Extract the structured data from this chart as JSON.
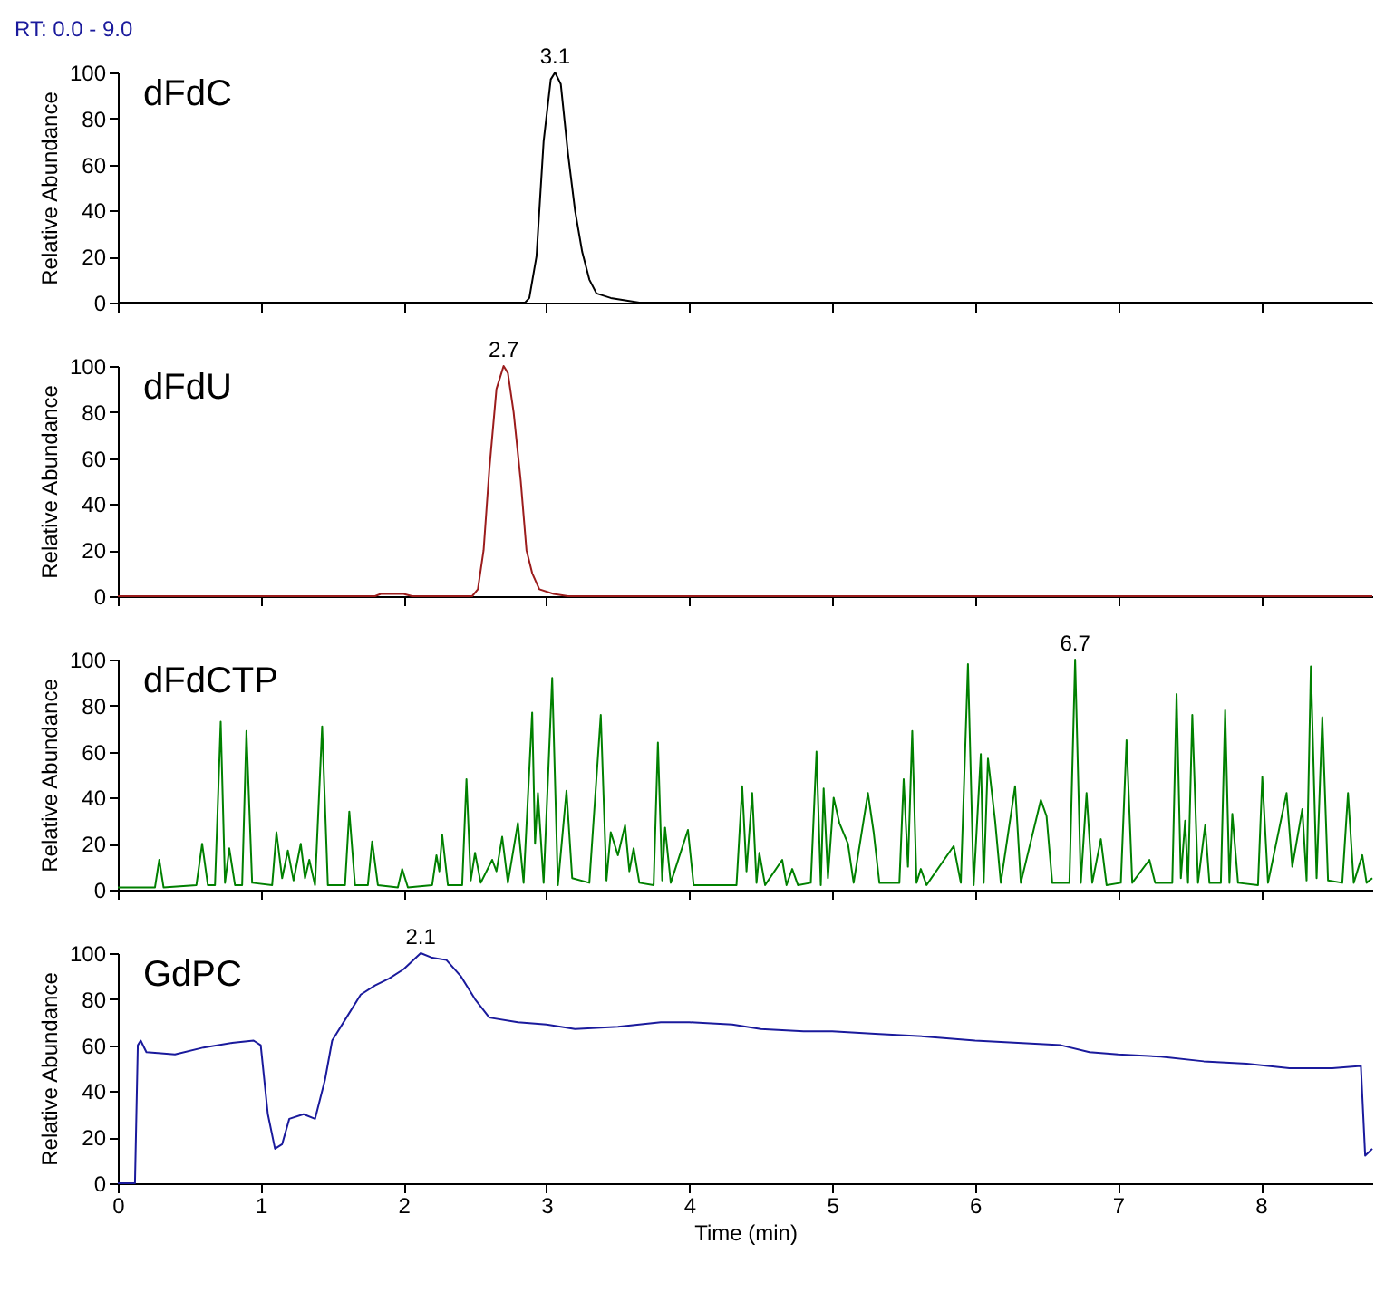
{
  "chart_data": [
    {
      "type": "line",
      "title": "RT: 0.0 - 9.0",
      "ylabel": "Relative Abundance",
      "xlim": [
        0,
        8.78
      ],
      "xticks": [
        0,
        1,
        2,
        3,
        4,
        5,
        6,
        7,
        8
      ],
      "ylim": [
        0,
        100
      ],
      "yticks": [
        0,
        20,
        40,
        60,
        80,
        100
      ],
      "tick_labels": "y",
      "annotations": [
        {
          "text": "3.1",
          "x": 3.06,
          "y": 100
        }
      ],
      "series": [
        {
          "name": "dFdC",
          "color": "#000000",
          "x": [
            0,
            2.85,
            2.88,
            2.93,
            2.98,
            3.03,
            3.06,
            3.1,
            3.15,
            3.2,
            3.25,
            3.3,
            3.35,
            3.45,
            3.55,
            3.65,
            8.78
          ],
          "values": [
            0,
            0,
            2,
            20,
            70,
            97,
            100,
            95,
            65,
            40,
            22,
            10,
            4,
            2,
            1,
            0,
            0
          ]
        }
      ]
    },
    {
      "type": "line",
      "ylabel": "Relative Abundance",
      "xlim": [
        0,
        8.78
      ],
      "xticks": [
        0,
        1,
        2,
        3,
        4,
        5,
        6,
        7,
        8
      ],
      "ylim": [
        0,
        100
      ],
      "yticks": [
        0,
        20,
        40,
        60,
        80,
        100
      ],
      "tick_labels": "y",
      "annotations": [
        {
          "text": "2.7",
          "x": 2.7,
          "y": 100
        }
      ],
      "series": [
        {
          "name": "dFdU",
          "color": "#9b1c1c",
          "x": [
            0,
            1.8,
            1.84,
            2.0,
            2.06,
            2.48,
            2.52,
            2.56,
            2.6,
            2.65,
            2.7,
            2.73,
            2.77,
            2.82,
            2.86,
            2.9,
            2.95,
            3.05,
            3.15,
            8.78
          ],
          "values": [
            0,
            0,
            1,
            1,
            0,
            0,
            3,
            20,
            55,
            90,
            100,
            97,
            80,
            50,
            20,
            10,
            3,
            1,
            0,
            0
          ]
        }
      ]
    },
    {
      "type": "line",
      "ylabel": "Relative Abundance",
      "xlim": [
        0,
        8.78
      ],
      "xticks": [
        0,
        1,
        2,
        3,
        4,
        5,
        6,
        7,
        8
      ],
      "ylim": [
        0,
        100
      ],
      "yticks": [
        0,
        20,
        40,
        60,
        80,
        100
      ],
      "tick_labels": "y",
      "annotations": [
        {
          "text": "6.7",
          "x": 6.7,
          "y": 100
        }
      ],
      "series": [
        {
          "name": "dFdCTP",
          "color": "#008000",
          "x": [
            0,
            0.26,
            0.29,
            0.32,
            0.55,
            0.59,
            0.63,
            0.68,
            0.72,
            0.75,
            0.78,
            0.82,
            0.87,
            0.9,
            0.94,
            1.08,
            1.11,
            1.15,
            1.19,
            1.23,
            1.28,
            1.31,
            1.34,
            1.38,
            1.43,
            1.47,
            1.59,
            1.62,
            1.66,
            1.75,
            1.78,
            1.82,
            1.96,
            1.99,
            2.03,
            2.2,
            2.23,
            2.25,
            2.27,
            2.31,
            2.41,
            2.44,
            2.47,
            2.5,
            2.54,
            2.62,
            2.65,
            2.69,
            2.73,
            2.8,
            2.84,
            2.9,
            2.92,
            2.94,
            2.98,
            3.04,
            3.08,
            3.14,
            3.18,
            3.3,
            3.38,
            3.42,
            3.45,
            3.5,
            3.55,
            3.58,
            3.61,
            3.65,
            3.75,
            3.78,
            3.81,
            3.83,
            3.87,
            3.99,
            4.03,
            4.33,
            4.37,
            4.4,
            4.44,
            4.47,
            4.49,
            4.53,
            4.65,
            4.68,
            4.72,
            4.76,
            4.85,
            4.89,
            4.92,
            4.94,
            4.97,
            5.01,
            5.05,
            5.11,
            5.15,
            5.25,
            5.29,
            5.33,
            5.47,
            5.5,
            5.53,
            5.56,
            5.59,
            5.62,
            5.66,
            5.85,
            5.9,
            5.95,
            5.99,
            6.04,
            6.06,
            6.09,
            6.14,
            6.18,
            6.28,
            6.32,
            6.46,
            6.5,
            6.54,
            6.66,
            6.7,
            6.74,
            6.78,
            6.82,
            6.88,
            6.92,
            7.02,
            7.06,
            7.1,
            7.22,
            7.26,
            7.38,
            7.41,
            7.44,
            7.47,
            7.49,
            7.52,
            7.56,
            7.61,
            7.64,
            7.72,
            7.75,
            7.78,
            7.8,
            7.84,
            7.98,
            8.01,
            8.05,
            8.18,
            8.22,
            8.29,
            8.32,
            8.35,
            8.39,
            8.43,
            8.47,
            8.57,
            8.61,
            8.65,
            8.71,
            8.74,
            8.78
          ],
          "values": [
            1,
            1,
            13,
            1,
            2,
            20,
            2,
            2,
            73,
            3,
            18,
            2,
            2,
            69,
            3,
            2,
            25,
            5,
            17,
            4,
            20,
            5,
            13,
            2,
            71,
            2,
            2,
            34,
            2,
            2,
            21,
            2,
            1,
            9,
            1,
            2,
            15,
            8,
            24,
            2,
            2,
            48,
            4,
            16,
            3,
            13,
            8,
            23,
            3,
            29,
            3,
            77,
            20,
            42,
            3,
            92,
            2,
            43,
            5,
            3,
            76,
            4,
            25,
            15,
            28,
            8,
            18,
            3,
            2,
            64,
            4,
            27,
            3,
            26,
            2,
            2,
            45,
            8,
            42,
            3,
            16,
            2,
            13,
            2,
            9,
            2,
            3,
            60,
            2,
            44,
            5,
            40,
            29,
            20,
            3,
            42,
            25,
            3,
            3,
            48,
            10,
            69,
            3,
            9,
            2,
            19,
            3,
            98,
            2,
            59,
            3,
            57,
            30,
            3,
            45,
            3,
            39,
            32,
            3,
            3,
            100,
            3,
            42,
            3,
            22,
            2,
            3,
            65,
            3,
            13,
            3,
            3,
            85,
            5,
            30,
            3,
            76,
            3,
            28,
            3,
            3,
            78,
            3,
            33,
            3,
            2,
            49,
            3,
            42,
            10,
            35,
            4,
            97,
            5,
            75,
            4,
            3,
            42,
            3,
            15,
            3,
            5
          ]
        }
      ]
    },
    {
      "type": "line",
      "xlabel": "Time (min)",
      "ylabel": "Relative Abundance",
      "xlim": [
        0,
        8.78
      ],
      "xticks": [
        0,
        1,
        2,
        3,
        4,
        5,
        6,
        7,
        8
      ],
      "ylim": [
        0,
        100
      ],
      "yticks": [
        0,
        20,
        40,
        60,
        80,
        100
      ],
      "annotations": [
        {
          "text": "2.1",
          "x": 2.12,
          "y": 100
        }
      ],
      "series": [
        {
          "name": "GdPC",
          "color": "#1a1a9c",
          "x": [
            0,
            0.12,
            0.14,
            0.16,
            0.2,
            0.4,
            0.6,
            0.8,
            0.95,
            1.0,
            1.05,
            1.1,
            1.15,
            1.2,
            1.3,
            1.38,
            1.45,
            1.5,
            1.6,
            1.7,
            1.8,
            1.9,
            2.0,
            2.12,
            2.2,
            2.3,
            2.4,
            2.5,
            2.6,
            2.8,
            3.0,
            3.2,
            3.5,
            3.8,
            4.0,
            4.3,
            4.5,
            4.8,
            5.0,
            5.3,
            5.6,
            6.0,
            6.3,
            6.6,
            6.8,
            7.0,
            7.3,
            7.6,
            7.9,
            8.2,
            8.5,
            8.7,
            8.73,
            8.78
          ],
          "values": [
            0,
            0,
            60,
            62,
            57,
            56,
            59,
            61,
            62,
            60,
            30,
            15,
            17,
            28,
            30,
            28,
            45,
            62,
            72,
            82,
            86,
            89,
            93,
            100,
            98,
            97,
            90,
            80,
            72,
            70,
            69,
            67,
            68,
            70,
            70,
            69,
            67,
            66,
            66,
            65,
            64,
            62,
            61,
            60,
            57,
            56,
            55,
            53,
            52,
            50,
            50,
            51,
            12,
            15
          ]
        }
      ]
    }
  ]
}
